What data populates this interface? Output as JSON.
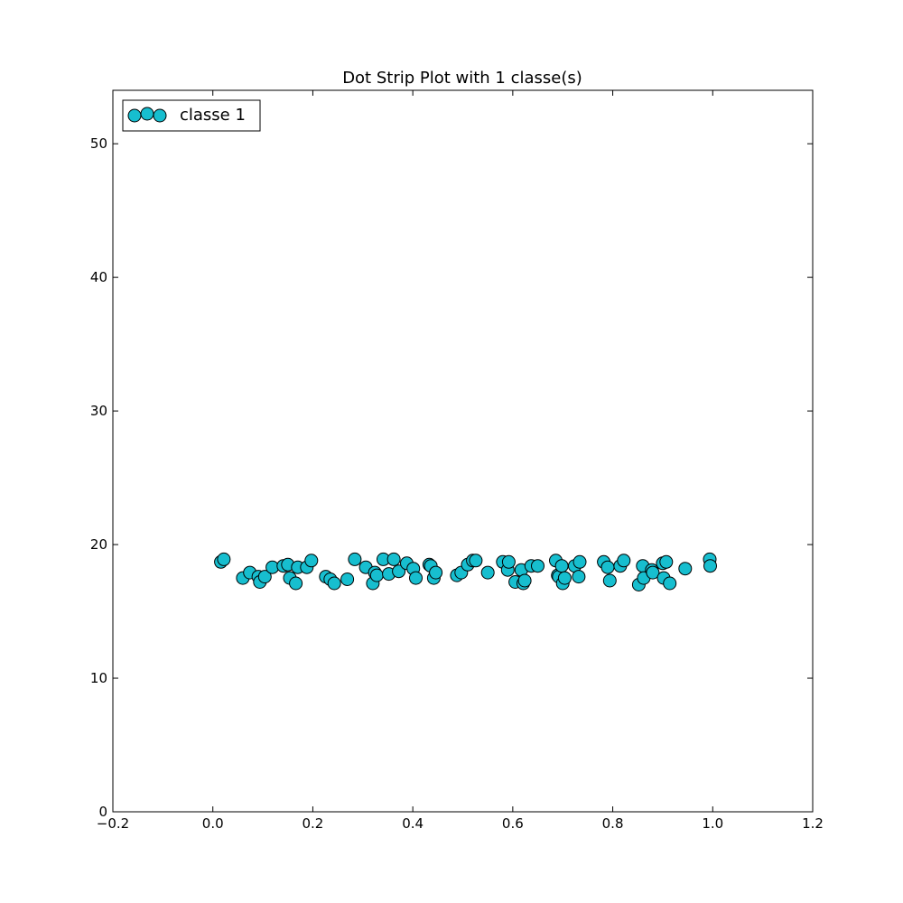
{
  "chart_data": {
    "type": "scatter",
    "title": "Dot Strip Plot with 1 classe(s)",
    "xlabel": "",
    "ylabel": "",
    "xlim": [
      -0.2,
      1.2
    ],
    "ylim": [
      0,
      54
    ],
    "xticks": [
      -0.2,
      0.0,
      0.2,
      0.4,
      0.6,
      0.8,
      1.0,
      1.2
    ],
    "xtick_labels": [
      "−0.2",
      "0.0",
      "0.2",
      "0.4",
      "0.6",
      "0.8",
      "1.0",
      "1.2"
    ],
    "yticks": [
      0,
      10,
      20,
      30,
      40,
      50
    ],
    "ytick_labels": [
      "0",
      "10",
      "20",
      "30",
      "40",
      "50"
    ],
    "grid": false,
    "legend_position": "top-left",
    "series": [
      {
        "name": "classe 1",
        "color": "#17becf",
        "edge_color": "#000000",
        "points": [
          [
            0.016,
            18.7
          ],
          [
            0.022,
            18.9
          ],
          [
            0.06,
            17.5
          ],
          [
            0.074,
            17.9
          ],
          [
            0.091,
            17.6
          ],
          [
            0.094,
            17.2
          ],
          [
            0.104,
            17.6
          ],
          [
            0.119,
            18.3
          ],
          [
            0.141,
            18.4
          ],
          [
            0.15,
            18.5
          ],
          [
            0.154,
            17.5
          ],
          [
            0.166,
            17.1
          ],
          [
            0.17,
            18.3
          ],
          [
            0.188,
            18.3
          ],
          [
            0.197,
            18.8
          ],
          [
            0.226,
            17.6
          ],
          [
            0.235,
            17.4
          ],
          [
            0.243,
            17.1
          ],
          [
            0.269,
            17.4
          ],
          [
            0.284,
            18.9
          ],
          [
            0.306,
            18.3
          ],
          [
            0.32,
            17.1
          ],
          [
            0.324,
            17.9
          ],
          [
            0.328,
            17.7
          ],
          [
            0.341,
            18.9
          ],
          [
            0.352,
            17.8
          ],
          [
            0.362,
            18.9
          ],
          [
            0.372,
            18.0
          ],
          [
            0.388,
            18.6
          ],
          [
            0.401,
            18.2
          ],
          [
            0.406,
            17.5
          ],
          [
            0.433,
            18.5
          ],
          [
            0.436,
            18.4
          ],
          [
            0.442,
            17.5
          ],
          [
            0.446,
            17.9
          ],
          [
            0.488,
            17.7
          ],
          [
            0.497,
            17.9
          ],
          [
            0.51,
            18.5
          ],
          [
            0.52,
            18.8
          ],
          [
            0.526,
            18.8
          ],
          [
            0.55,
            17.9
          ],
          [
            0.58,
            18.7
          ],
          [
            0.59,
            18.1
          ],
          [
            0.592,
            18.7
          ],
          [
            0.605,
            17.2
          ],
          [
            0.617,
            18.1
          ],
          [
            0.621,
            17.1
          ],
          [
            0.624,
            17.3
          ],
          [
            0.637,
            18.4
          ],
          [
            0.65,
            18.4
          ],
          [
            0.686,
            18.8
          ],
          [
            0.69,
            17.7
          ],
          [
            0.692,
            17.6
          ],
          [
            0.698,
            18.4
          ],
          [
            0.7,
            17.1
          ],
          [
            0.704,
            17.5
          ],
          [
            0.724,
            18.4
          ],
          [
            0.734,
            18.7
          ],
          [
            0.732,
            17.6
          ],
          [
            0.782,
            18.7
          ],
          [
            0.79,
            18.3
          ],
          [
            0.794,
            17.3
          ],
          [
            0.815,
            18.4
          ],
          [
            0.822,
            18.8
          ],
          [
            0.852,
            17.0
          ],
          [
            0.86,
            18.4
          ],
          [
            0.862,
            17.5
          ],
          [
            0.878,
            18.1
          ],
          [
            0.88,
            17.9
          ],
          [
            0.9,
            18.6
          ],
          [
            0.902,
            17.5
          ],
          [
            0.907,
            18.7
          ],
          [
            0.914,
            17.1
          ],
          [
            0.945,
            18.2
          ],
          [
            0.994,
            18.9
          ],
          [
            0.995,
            18.4
          ]
        ]
      }
    ]
  }
}
